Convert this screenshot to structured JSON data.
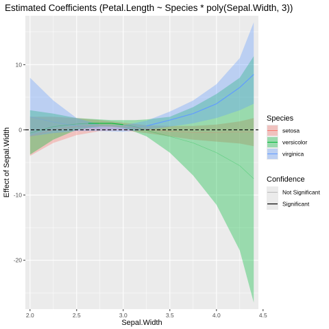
{
  "chart_data": {
    "type": "line",
    "title": "Estimated Coefficients (Petal.Length ~ Species * poly(Sepal.Width, 3))",
    "xlabel": "Sepal.Width",
    "ylabel": "Effect of Sepal.Width",
    "xlim": [
      1.95,
      4.45
    ],
    "ylim": [
      -27.5,
      17.5
    ],
    "x_ticks": [
      2.0,
      2.5,
      3.0,
      3.5,
      4.0,
      4.5
    ],
    "x_tick_labels": [
      "2.0",
      "2.5",
      "3.0",
      "3.5",
      "4.0",
      "4.5"
    ],
    "y_ticks": [
      10,
      0,
      -10,
      -20
    ],
    "y_tick_labels": [
      "10",
      "0",
      "-10",
      "-20"
    ],
    "grid": true,
    "reference_line": {
      "y": 0,
      "style": "dashed"
    },
    "legend_placement": "right",
    "legend": {
      "species_title": "Species",
      "confidence_title": "Confidence",
      "confidence_items": [
        "Not Significant",
        "Significant"
      ]
    },
    "series": [
      {
        "name": "setosa",
        "color": "#f8766d",
        "x": [
          2.0,
          2.25,
          2.5,
          2.75,
          3.0,
          3.25,
          3.5,
          3.75,
          4.0,
          4.25,
          4.4
        ],
        "y": [
          -1.0,
          0.0,
          0.5,
          0.7,
          0.5,
          0.1,
          -0.2,
          -0.4,
          -0.4,
          -0.3,
          -0.3
        ],
        "lower": [
          -4.0,
          -2.0,
          -0.8,
          -0.2,
          -0.1,
          -0.5,
          -1.0,
          -1.5,
          -1.8,
          -2.1,
          -2.5
        ],
        "upper": [
          2.0,
          2.0,
          1.8,
          1.5,
          1.1,
          0.7,
          0.6,
          0.6,
          0.8,
          1.3,
          1.8
        ],
        "significant": [
          false,
          false,
          false,
          false,
          false,
          false,
          false,
          false,
          false,
          false,
          false
        ]
      },
      {
        "name": "versicolor",
        "color": "#00ba38",
        "x": [
          2.0,
          2.25,
          2.5,
          2.625,
          2.75,
          2.875,
          3.0,
          3.125,
          3.25,
          3.5,
          3.75,
          4.0,
          4.25,
          4.4
        ],
        "y": [
          -0.5,
          0.5,
          0.9,
          1.0,
          1.0,
          1.0,
          0.8,
          0.5,
          -0.1,
          -1.0,
          -2.0,
          -3.5,
          -5.5,
          -7.5
        ],
        "lower": [
          -3.8,
          -1.5,
          0.0,
          0.3,
          0.5,
          0.5,
          0.3,
          -0.3,
          -1.0,
          -3.5,
          -7.0,
          -11.5,
          -18.5,
          -26.5
        ],
        "upper": [
          3.0,
          2.5,
          1.8,
          1.7,
          1.6,
          1.5,
          1.5,
          1.5,
          1.6,
          2.0,
          3.5,
          5.5,
          8.0,
          11.3
        ],
        "significant": [
          false,
          false,
          false,
          true,
          true,
          true,
          true,
          false,
          false,
          false,
          false,
          false,
          false,
          false
        ]
      },
      {
        "name": "virginica",
        "color": "#619cff",
        "x": [
          2.0,
          2.25,
          2.5,
          2.75,
          3.0,
          3.25,
          3.5,
          3.75,
          4.0,
          4.25,
          4.4
        ],
        "y": [
          2.0,
          1.2,
          0.6,
          0.3,
          0.2,
          0.6,
          1.5,
          2.5,
          4.0,
          6.5,
          8.5
        ],
        "lower": [
          -1.0,
          -0.5,
          -0.2,
          -0.2,
          -0.3,
          0.0,
          0.5,
          1.0,
          1.8,
          3.0,
          4.0
        ],
        "upper": [
          8.0,
          4.5,
          1.8,
          0.8,
          0.7,
          1.4,
          2.8,
          4.5,
          7.0,
          11.0,
          16.5
        ],
        "significant": [
          false,
          false,
          false,
          false,
          false,
          true,
          true,
          true,
          true,
          true,
          true
        ]
      }
    ]
  }
}
